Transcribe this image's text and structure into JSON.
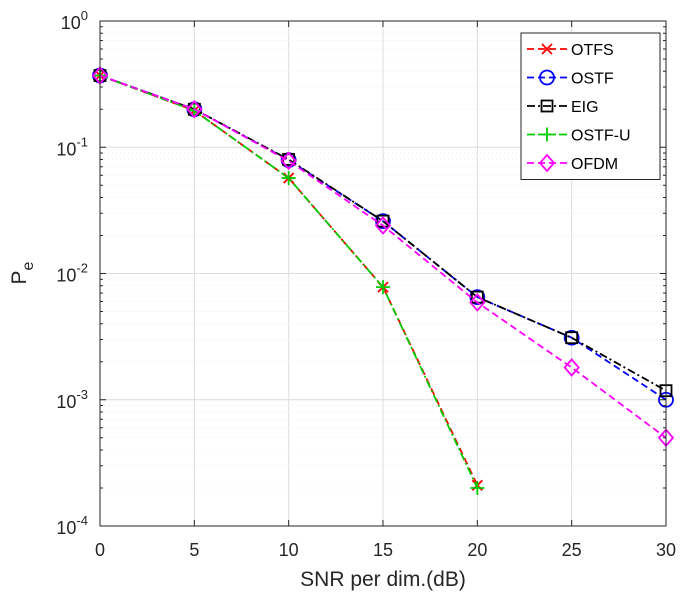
{
  "chart_data": {
    "type": "line",
    "xlabel": "SNR per dim.(dB)",
    "ylabel": {
      "base": "P",
      "sub": "e"
    },
    "xlim": [
      0,
      30
    ],
    "ylim": [
      0.0001,
      1
    ],
    "yscale": "log",
    "grid": true,
    "minor_grid": true,
    "legend_position": "top-right",
    "x_ticks": [
      "0",
      "5",
      "10",
      "15",
      "20",
      "25",
      "30"
    ],
    "y_ticks": [
      {
        "base": "10",
        "exp": "0"
      },
      {
        "base": "10",
        "exp": "-1"
      },
      {
        "base": "10",
        "exp": "-2"
      },
      {
        "base": "10",
        "exp": "-3"
      },
      {
        "base": "10",
        "exp": "-4"
      }
    ],
    "series": [
      {
        "name": "OTFS",
        "color": "#ff0000",
        "dash": "dash",
        "marker": "x",
        "x": [
          0,
          5,
          10,
          15,
          20
        ],
        "y": [
          0.37,
          0.195,
          0.057,
          0.0078,
          0.00021
        ]
      },
      {
        "name": "OSTF",
        "color": "#0000ff",
        "dash": "dash",
        "marker": "circle",
        "x": [
          0,
          5,
          10,
          15,
          20,
          25,
          30
        ],
        "y": [
          0.37,
          0.2,
          0.079,
          0.026,
          0.0065,
          0.0031,
          0.001
        ]
      },
      {
        "name": "EIG",
        "color": "#000000",
        "dash": "dashdot",
        "marker": "square",
        "x": [
          0,
          5,
          10,
          15,
          20,
          25,
          30
        ],
        "y": [
          0.37,
          0.2,
          0.08,
          0.026,
          0.0065,
          0.0031,
          0.00118
        ]
      },
      {
        "name": "OSTF-U",
        "color": "#00cc00",
        "dash": "dashdot",
        "marker": "plus",
        "x": [
          0,
          5,
          10,
          15,
          20
        ],
        "y": [
          0.37,
          0.195,
          0.057,
          0.0078,
          0.0002
        ]
      },
      {
        "name": "OFDM",
        "color": "#ff00ff",
        "dash": "dash",
        "marker": "diamond",
        "x": [
          0,
          5,
          10,
          15,
          20,
          25,
          30
        ],
        "y": [
          0.37,
          0.2,
          0.078,
          0.024,
          0.0059,
          0.0018,
          0.0005
        ]
      }
    ]
  }
}
